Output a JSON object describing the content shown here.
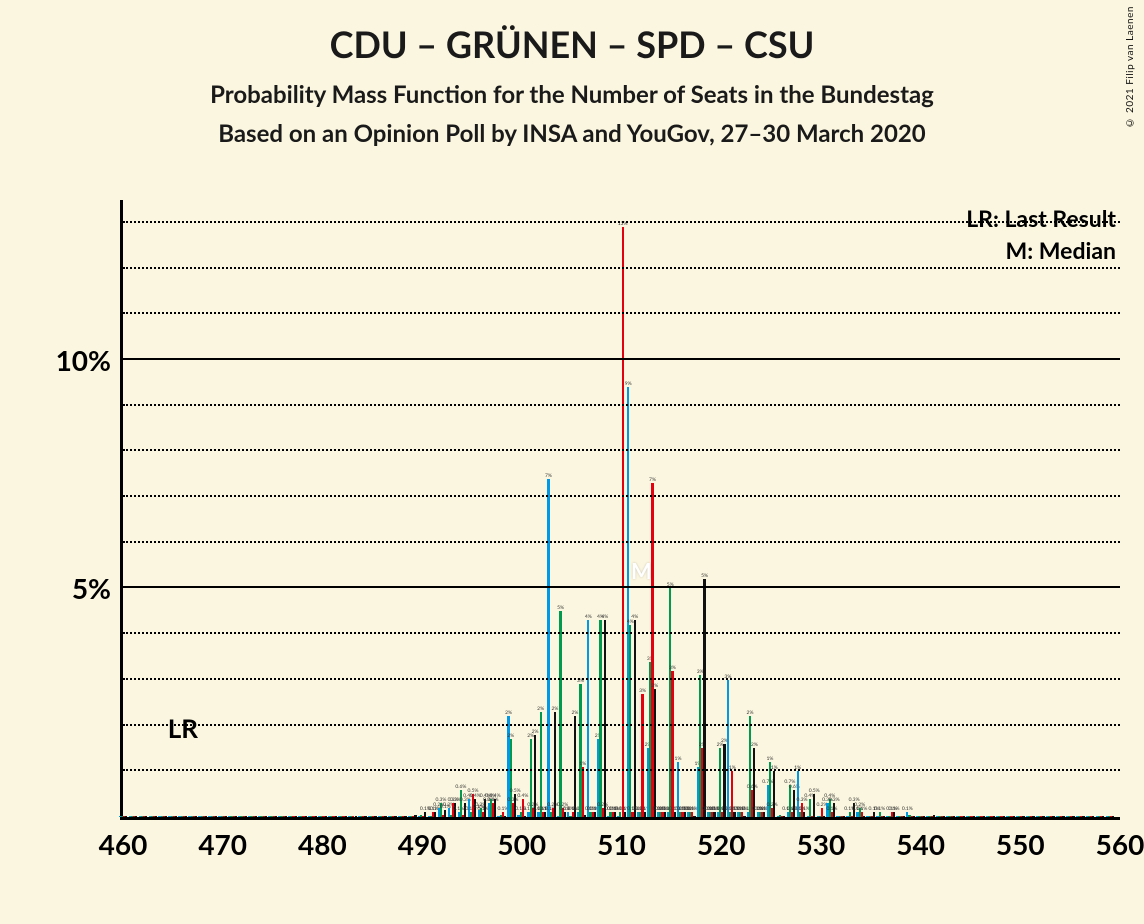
{
  "copyright": "© 2021 Filip van Laenen",
  "title": "CDU – GRÜNEN – SPD – CSU",
  "subtitle1": "Probability Mass Function for the Number of Seats in the Bundestag",
  "subtitle2": "Based on an Opinion Poll by INSA and YouGov, 27–30 March 2020",
  "legend": {
    "lr": "LR: Last Result",
    "m": "M: Median"
  },
  "lr_label": "LR",
  "m_label": "M",
  "lr_x": 466,
  "m_x": 512,
  "chart": {
    "background": "#fbf6df",
    "xlim": [
      460,
      560
    ],
    "ylim": [
      0,
      13.5
    ],
    "x_ticks": [
      460,
      470,
      480,
      490,
      500,
      510,
      520,
      530,
      540,
      550,
      560
    ],
    "y_major": [
      5,
      10
    ],
    "y_minor": [
      1,
      2,
      3,
      4,
      6,
      7,
      8,
      9,
      11,
      12,
      13
    ],
    "y_major_labels": [
      "5%",
      "10%"
    ],
    "series_colors": [
      "#0099e6",
      "#00994d",
      "#e3000f",
      "#111111"
    ],
    "bar_inner_width": 0.22,
    "data": {
      "460": [
        0,
        0,
        0,
        0
      ],
      "461": [
        0,
        0,
        0,
        0
      ],
      "462": [
        0,
        0,
        0,
        0
      ],
      "463": [
        0,
        0,
        0,
        0
      ],
      "464": [
        0,
        0,
        0,
        0
      ],
      "465": [
        0,
        0,
        0,
        0
      ],
      "466": [
        0,
        0,
        0,
        0
      ],
      "467": [
        0,
        0,
        0,
        0
      ],
      "468": [
        0,
        0,
        0,
        0
      ],
      "469": [
        0,
        0,
        0,
        0
      ],
      "470": [
        0,
        0,
        0,
        0
      ],
      "471": [
        0,
        0,
        0,
        0
      ],
      "472": [
        0,
        0,
        0,
        0
      ],
      "473": [
        0,
        0,
        0,
        0
      ],
      "474": [
        0,
        0,
        0,
        0
      ],
      "475": [
        0,
        0,
        0,
        0
      ],
      "476": [
        0,
        0,
        0,
        0
      ],
      "477": [
        0,
        0,
        0,
        0
      ],
      "478": [
        0,
        0,
        0,
        0
      ],
      "479": [
        0,
        0,
        0,
        0
      ],
      "480": [
        0,
        0,
        0,
        0
      ],
      "481": [
        0,
        0,
        0,
        0
      ],
      "482": [
        0,
        0,
        0,
        0
      ],
      "483": [
        0,
        0,
        0,
        0
      ],
      "484": [
        0,
        0,
        0,
        0
      ],
      "485": [
        0,
        0,
        0,
        0
      ],
      "486": [
        0,
        0,
        0,
        0
      ],
      "487": [
        0,
        0,
        0,
        0
      ],
      "488": [
        0,
        0,
        0,
        0
      ],
      "489": [
        0,
        0,
        0,
        0.05
      ],
      "490": [
        0,
        0.05,
        0,
        0.1
      ],
      "491": [
        0,
        0,
        0.1,
        0.1
      ],
      "492": [
        0.2,
        0.3,
        0.05,
        0.15
      ],
      "493": [
        0.2,
        0.05,
        0.3,
        0.3
      ],
      "494": [
        0.1,
        0.6,
        0.05,
        0.3
      ],
      "495": [
        0.4,
        0.1,
        0.5,
        0.4
      ],
      "496": [
        0.15,
        0.2,
        0.1,
        0.4
      ],
      "497": [
        0.3,
        0.4,
        0.3,
        0.4
      ],
      "498": [
        0,
        0.05,
        0.1,
        0
      ],
      "499": [
        2.2,
        1.7,
        0.3,
        0.5
      ],
      "500": [
        0.05,
        0.1,
        0.4,
        0
      ],
      "501": [
        0.1,
        1.7,
        0.2,
        1.8
      ],
      "502": [
        0.1,
        2.3,
        0.1,
        0.1
      ],
      "503": [
        7.4,
        0.1,
        0.2,
        2.3
      ],
      "504": [
        0,
        4.5,
        0.2,
        0.1
      ],
      "505": [
        0.1,
        0,
        0.1,
        2.2
      ],
      "506": [
        0.1,
        2.9,
        1.1,
        0.05
      ],
      "507": [
        4.3,
        0.1,
        0.1,
        0.1
      ],
      "508": [
        1.7,
        4.3,
        0.2,
        4.3
      ],
      "509": [
        0,
        0.1,
        0.1,
        0.1
      ],
      "510": [
        0,
        0.1,
        12.9,
        0.1
      ],
      "511": [
        9.4,
        4.2,
        0.1,
        4.3
      ],
      "512": [
        0.1,
        0.1,
        2.7,
        0.1
      ],
      "513": [
        1.5,
        3.4,
        7.3,
        2.8
      ],
      "514": [
        0.1,
        0.1,
        0.1,
        0.1
      ],
      "515": [
        0.1,
        5.0,
        3.2,
        0.1
      ],
      "516": [
        1.2,
        0.1,
        0.1,
        0.1
      ],
      "517": [
        0.1,
        0.1,
        0.1,
        0
      ],
      "518": [
        1.1,
        3.1,
        1.5,
        5.2
      ],
      "519": [
        0.1,
        0.1,
        0.1,
        0.1
      ],
      "520": [
        0.1,
        1.5,
        0.1,
        1.6
      ],
      "521": [
        3.0,
        0.1,
        1.0,
        0.1
      ],
      "522": [
        0.1,
        0.1,
        0.1,
        0
      ],
      "523": [
        0.1,
        2.2,
        0.6,
        1.5
      ],
      "524": [
        0.1,
        0.1,
        0.1,
        0.1
      ],
      "525": [
        0.7,
        1.2,
        0.2,
        1.0
      ],
      "526": [
        0,
        0.05,
        0,
        0
      ],
      "527": [
        0.1,
        0.7,
        0.1,
        0.6
      ],
      "528": [
        1.0,
        0.1,
        0.3,
        0.1
      ],
      "529": [
        0,
        0.4,
        0,
        0.5
      ],
      "530": [
        0,
        0,
        0.2,
        0
      ],
      "531": [
        0.3,
        0.4,
        0.1,
        0.3
      ],
      "532": [
        0,
        0,
        0,
        0
      ],
      "533": [
        0,
        0.1,
        0,
        0.3
      ],
      "534": [
        0.1,
        0.2,
        0.1,
        0
      ],
      "535": [
        0,
        0,
        0,
        0.1
      ],
      "536": [
        0,
        0.1,
        0,
        0
      ],
      "537": [
        0,
        0,
        0.1,
        0.1
      ],
      "538": [
        0,
        0,
        0,
        0
      ],
      "539": [
        0.1,
        0.05,
        0,
        0
      ],
      "540": [
        0,
        0,
        0,
        0
      ],
      "541": [
        0,
        0,
        0,
        0.05
      ],
      "542": [
        0,
        0,
        0,
        0
      ],
      "543": [
        0,
        0,
        0,
        0
      ],
      "544": [
        0,
        0,
        0,
        0
      ],
      "545": [
        0,
        0,
        0,
        0
      ],
      "546": [
        0,
        0,
        0,
        0
      ],
      "547": [
        0,
        0,
        0,
        0
      ],
      "548": [
        0,
        0,
        0,
        0
      ],
      "549": [
        0,
        0,
        0,
        0
      ],
      "550": [
        0,
        0,
        0,
        0
      ],
      "551": [
        0,
        0,
        0,
        0
      ],
      "552": [
        0,
        0,
        0,
        0
      ],
      "553": [
        0,
        0,
        0,
        0
      ],
      "554": [
        0,
        0,
        0,
        0
      ],
      "555": [
        0,
        0,
        0,
        0
      ],
      "556": [
        0,
        0,
        0,
        0
      ],
      "557": [
        0,
        0,
        0,
        0
      ],
      "558": [
        0,
        0,
        0,
        0
      ],
      "559": [
        0,
        0,
        0,
        0
      ]
    }
  }
}
